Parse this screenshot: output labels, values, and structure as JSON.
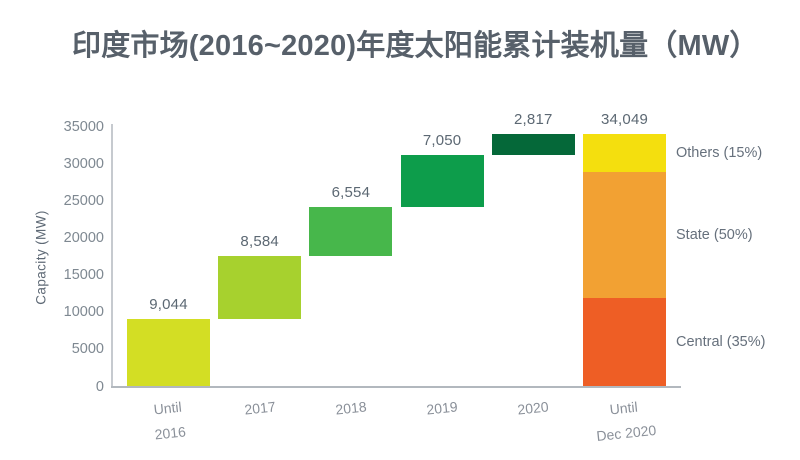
{
  "header": {
    "title": "印度市场(2016~2020)年度太阳能累计装机量（MW）",
    "title_color": "#57606a"
  },
  "chart_data": {
    "type": "waterfall",
    "title": "印度市场(2016~2020)年度太阳能累计装机量（MW）",
    "xlabel": "",
    "ylabel": "Capacity (MW)",
    "ylim": [
      0,
      35000
    ],
    "y_ticks": [
      "0",
      "5000",
      "10000",
      "15000",
      "20000",
      "25000",
      "30000",
      "35000"
    ],
    "y_tick_values": [
      0,
      5000,
      10000,
      15000,
      20000,
      25000,
      30000,
      35000
    ],
    "grid": false,
    "legend_position": "right-of-final-bar",
    "columns": [
      {
        "label": "Until 2016",
        "label_lines": [
          "Until",
          "2016"
        ],
        "value": 9044,
        "value_label": "9,044",
        "color": "#d3de24",
        "cumulative_start": 0,
        "cumulative_end": 9044
      },
      {
        "label": "2017",
        "label_lines": [
          "2017"
        ],
        "value": 8584,
        "value_label": "8,584",
        "color": "#a7d12e",
        "cumulative_start": 9044,
        "cumulative_end": 17628
      },
      {
        "label": "2018",
        "label_lines": [
          "2018"
        ],
        "value": 6554,
        "value_label": "6,554",
        "color": "#47b74b",
        "cumulative_start": 17628,
        "cumulative_end": 24182
      },
      {
        "label": "2019",
        "label_lines": [
          "2019"
        ],
        "value": 7050,
        "value_label": "7,050",
        "color": "#0d9d4b",
        "cumulative_start": 24182,
        "cumulative_end": 31232
      },
      {
        "label": "2020",
        "label_lines": [
          "2020"
        ],
        "value": 2817,
        "value_label": "2,817",
        "color": "#056839",
        "cumulative_start": 31232,
        "cumulative_end": 34049
      },
      {
        "label": "Until Dec 2020",
        "label_lines": [
          "Until",
          "Dec 2020"
        ],
        "value": 34049,
        "value_label": "34,049",
        "stacked": true,
        "segments": [
          {
            "name": "Central (35%)",
            "percent": 35,
            "color": "#ee5e25"
          },
          {
            "name": "State (50%)",
            "percent": 50,
            "color": "#f2a133"
          },
          {
            "name": "Others (15%)",
            "percent": 15,
            "color": "#f4df0e"
          }
        ]
      }
    ],
    "colors": {
      "axis_line": "#c6cacf",
      "baseline": "#b2b8be",
      "tick_label": "#7e8891",
      "x_label": "#8a9099",
      "value_label": "#5c6873",
      "legend_label": "#66707c",
      "y_axis_title": "#5f6a76"
    }
  }
}
